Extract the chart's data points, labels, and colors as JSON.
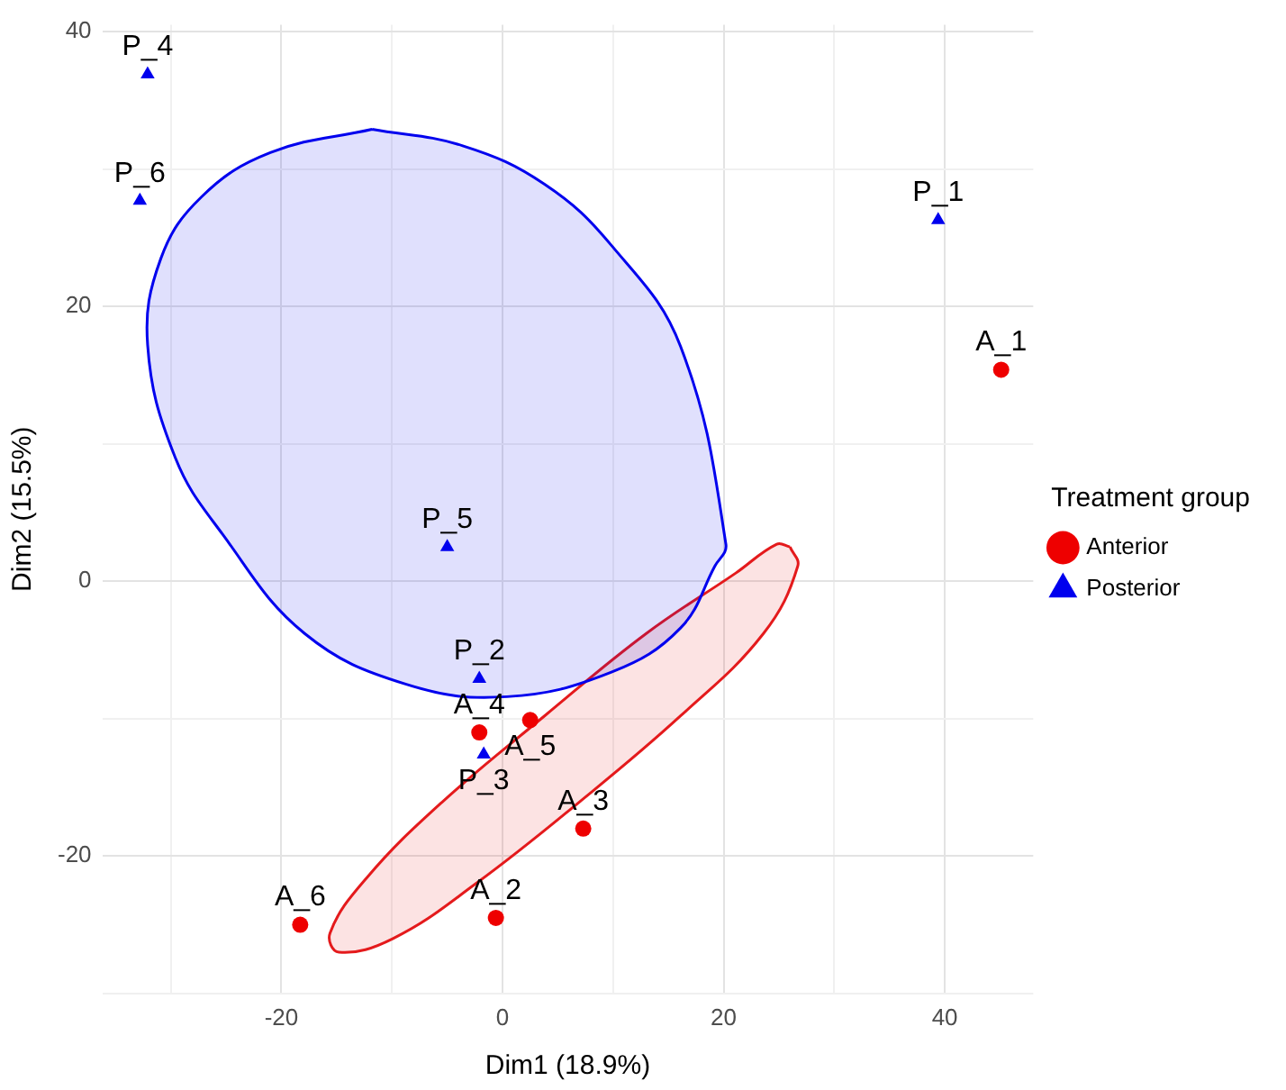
{
  "chart_data": {
    "type": "scatter",
    "xlabel": "Dim1 (18.9%)",
    "ylabel": "Dim2 (15.5%)",
    "legend_title": "Treatment group",
    "legend": "right",
    "grid": true,
    "xlim": [
      -36.2,
      48
    ],
    "ylim": [
      -30,
      40.5
    ],
    "xticks": [
      {
        "value": -30,
        "label": null
      },
      -20,
      {
        "value": -10,
        "label": null
      },
      0,
      {
        "value": 10,
        "label": null
      },
      20,
      {
        "value": 30,
        "label": null
      },
      40
    ],
    "yticks": [
      {
        "value": -30,
        "label": null
      },
      -20,
      {
        "value": -10,
        "label": null
      },
      0,
      {
        "value": 10,
        "label": null
      },
      20,
      {
        "value": 30,
        "label": null
      },
      40
    ],
    "series": [
      {
        "type": "area",
        "color": "#0000ee",
        "x": [
          -11.8,
          -3.6,
          3.8,
          9.9,
          16.1,
          20.2,
          19.2,
          16.1,
          9.9,
          0.4,
          -8.7,
          -17.9,
          -25.3,
          -29.6,
          -32.1,
          -30.9,
          -27.2,
          -21.0,
          -11.8
        ],
        "values": [
          32.9,
          31.7,
          28.9,
          24.4,
          17.1,
          2.7,
          1.1,
          -3.4,
          -6.6,
          -8.4,
          -7.5,
          -3.8,
          3.4,
          9.0,
          17.2,
          23.5,
          28.0,
          31.2,
          32.9
        ]
      },
      {
        "type": "area",
        "color": "#e41a1c",
        "x": [
          26.0,
          26.7,
          23.6,
          16.1,
          6.9,
          -2.4,
          -9.9,
          -14.8,
          -15.6,
          -12.3,
          -5.5,
          3.8,
          13.0,
          21.1,
          24.8,
          26.0
        ],
        "values": [
          2.5,
          1.1,
          -3.8,
          -9.8,
          -16.1,
          -22.0,
          -26.0,
          -27.0,
          -25.6,
          -21.6,
          -16.1,
          -9.8,
          -3.8,
          0.6,
          2.7,
          2.5
        ]
      },
      {
        "name": "Anterior",
        "color": "#ee0000",
        "marker": "circle",
        "x": [
          45.1,
          -0.6,
          7.3,
          -2.1,
          2.5,
          -18.3
        ],
        "values": [
          15.4,
          -24.5,
          -18.0,
          -11.0,
          -10.1,
          -25.0
        ]
      },
      {
        "name": "Posterior",
        "color": "#0000ee",
        "marker": "triangle",
        "x": [
          39.4,
          -2.1,
          -1.7,
          -32.1,
          -5.0,
          -32.8
        ],
        "values": [
          26.3,
          -7.1,
          -12.6,
          36.9,
          2.5,
          27.7
        ]
      }
    ],
    "annotations": [
      {
        "text": "A_1",
        "x": 45.1,
        "y": 15.4
      },
      {
        "text": "A_2",
        "x": -0.6,
        "y": -24.5
      },
      {
        "text": "A_3",
        "x": 7.3,
        "y": -18.0
      },
      {
        "text": "A_4",
        "x": -2.1,
        "y": -11.0
      },
      {
        "text": "A_5",
        "x": 2.5,
        "y": -10.1
      },
      {
        "text": "A_6",
        "x": -18.3,
        "y": -25.0
      },
      {
        "text": "P_1",
        "x": 39.4,
        "y": 26.3
      },
      {
        "text": "P_2",
        "x": -2.1,
        "y": -7.1
      },
      {
        "text": "P_3",
        "x": -1.7,
        "y": -12.6
      },
      {
        "text": "P_4",
        "x": -32.1,
        "y": 36.9
      },
      {
        "text": "P_5",
        "x": -5.0,
        "y": 2.5
      },
      {
        "text": "P_6",
        "x": -32.8,
        "y": 27.7
      }
    ]
  }
}
